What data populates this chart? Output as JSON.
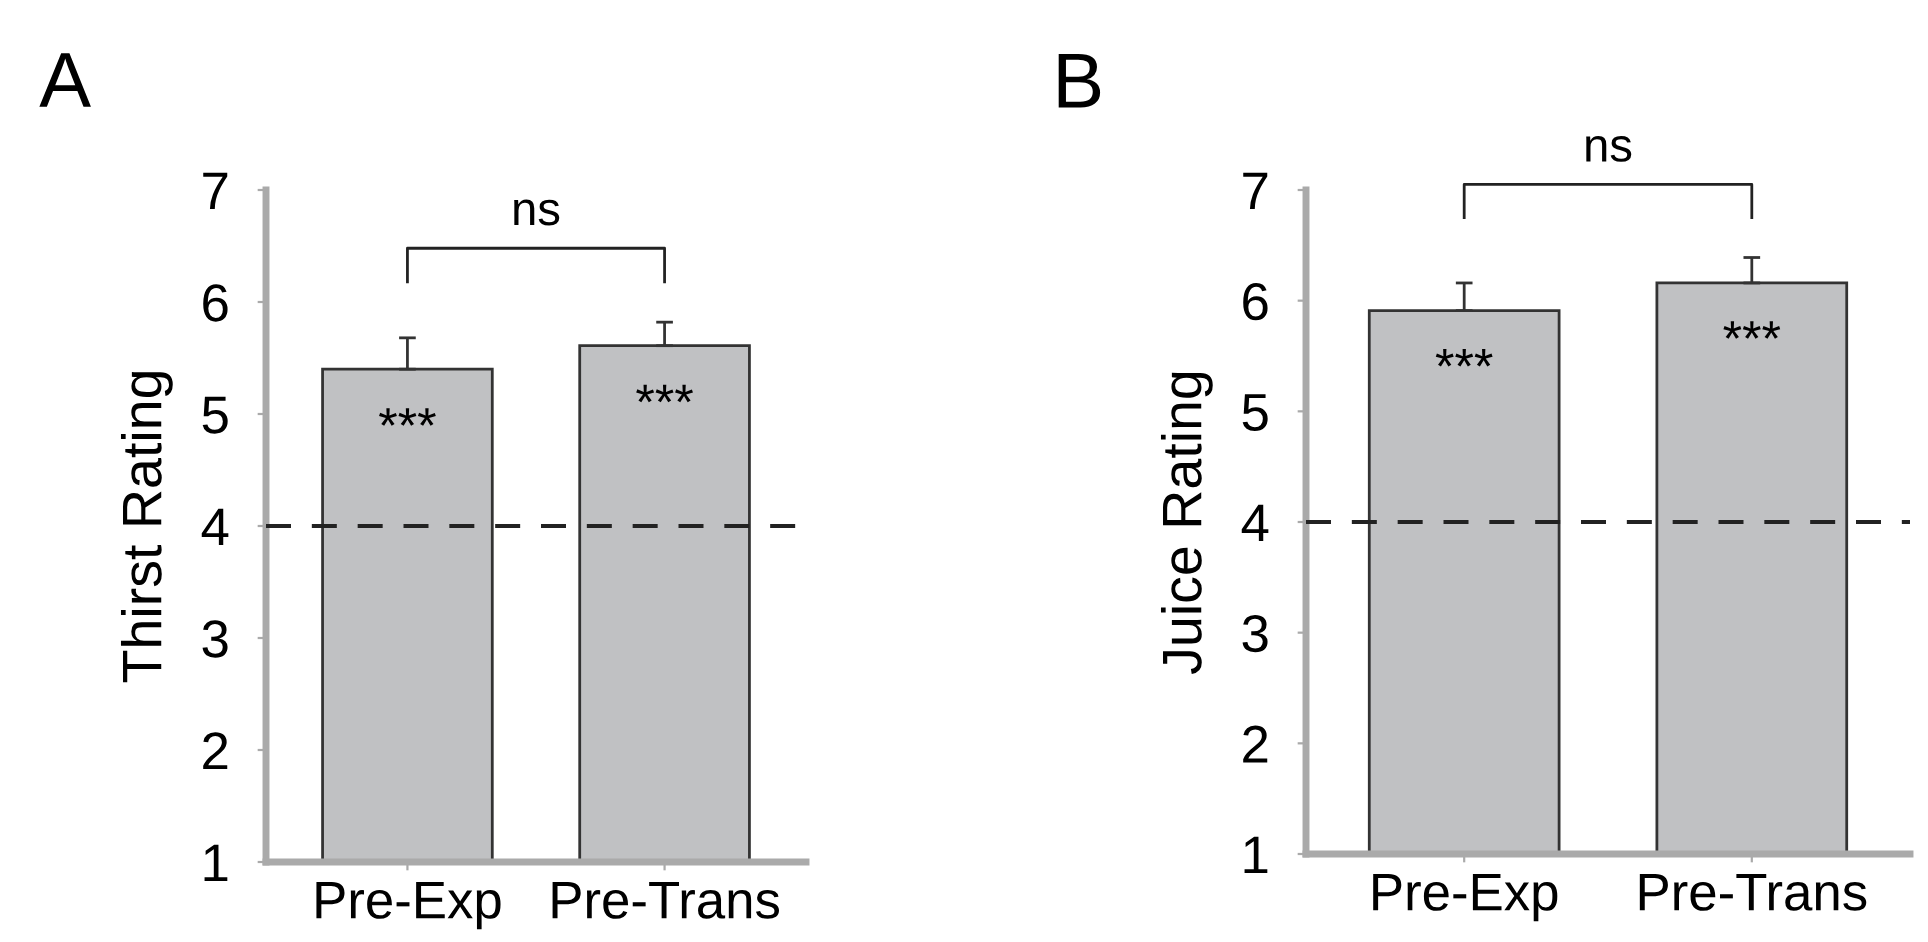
{
  "chart_data": [
    {
      "type": "bar",
      "title": "A",
      "ylabel": "Thirst Rating",
      "categories": [
        "Pre-Exp",
        "Pre-Trans"
      ],
      "values": [
        5.4,
        5.61
      ],
      "color": "#c0c1c3",
      "errors": [
        [
          5.4,
          5.68
        ],
        [
          5.61,
          5.82
        ]
      ],
      "ylim": [
        1,
        7
      ],
      "yticks": [
        1,
        2,
        3,
        4,
        5,
        6,
        7
      ],
      "grid": false,
      "ref_lines": [
        {
          "axis": "y",
          "value": 4,
          "line_style": "dashed",
          "color": "#222222"
        }
      ],
      "annotations": [
        "ns",
        "***",
        "***"
      ]
    },
    {
      "type": "bar",
      "title": "B",
      "ylabel": "Juice Rating",
      "categories": [
        "Pre-Exp",
        "Pre-Trans"
      ],
      "values": [
        5.91,
        6.16
      ],
      "color": "#c0c1c3",
      "errors": [
        [
          5.91,
          6.16
        ],
        [
          6.16,
          6.39
        ]
      ],
      "ylim": [
        1,
        7
      ],
      "yticks": [
        1,
        2,
        3,
        4,
        5,
        6,
        7
      ],
      "grid": false,
      "ref_lines": [
        {
          "axis": "y",
          "value": 4,
          "line_style": "dashed",
          "color": "#222222"
        }
      ],
      "annotations": [
        "ns",
        "***",
        "***"
      ]
    }
  ]
}
